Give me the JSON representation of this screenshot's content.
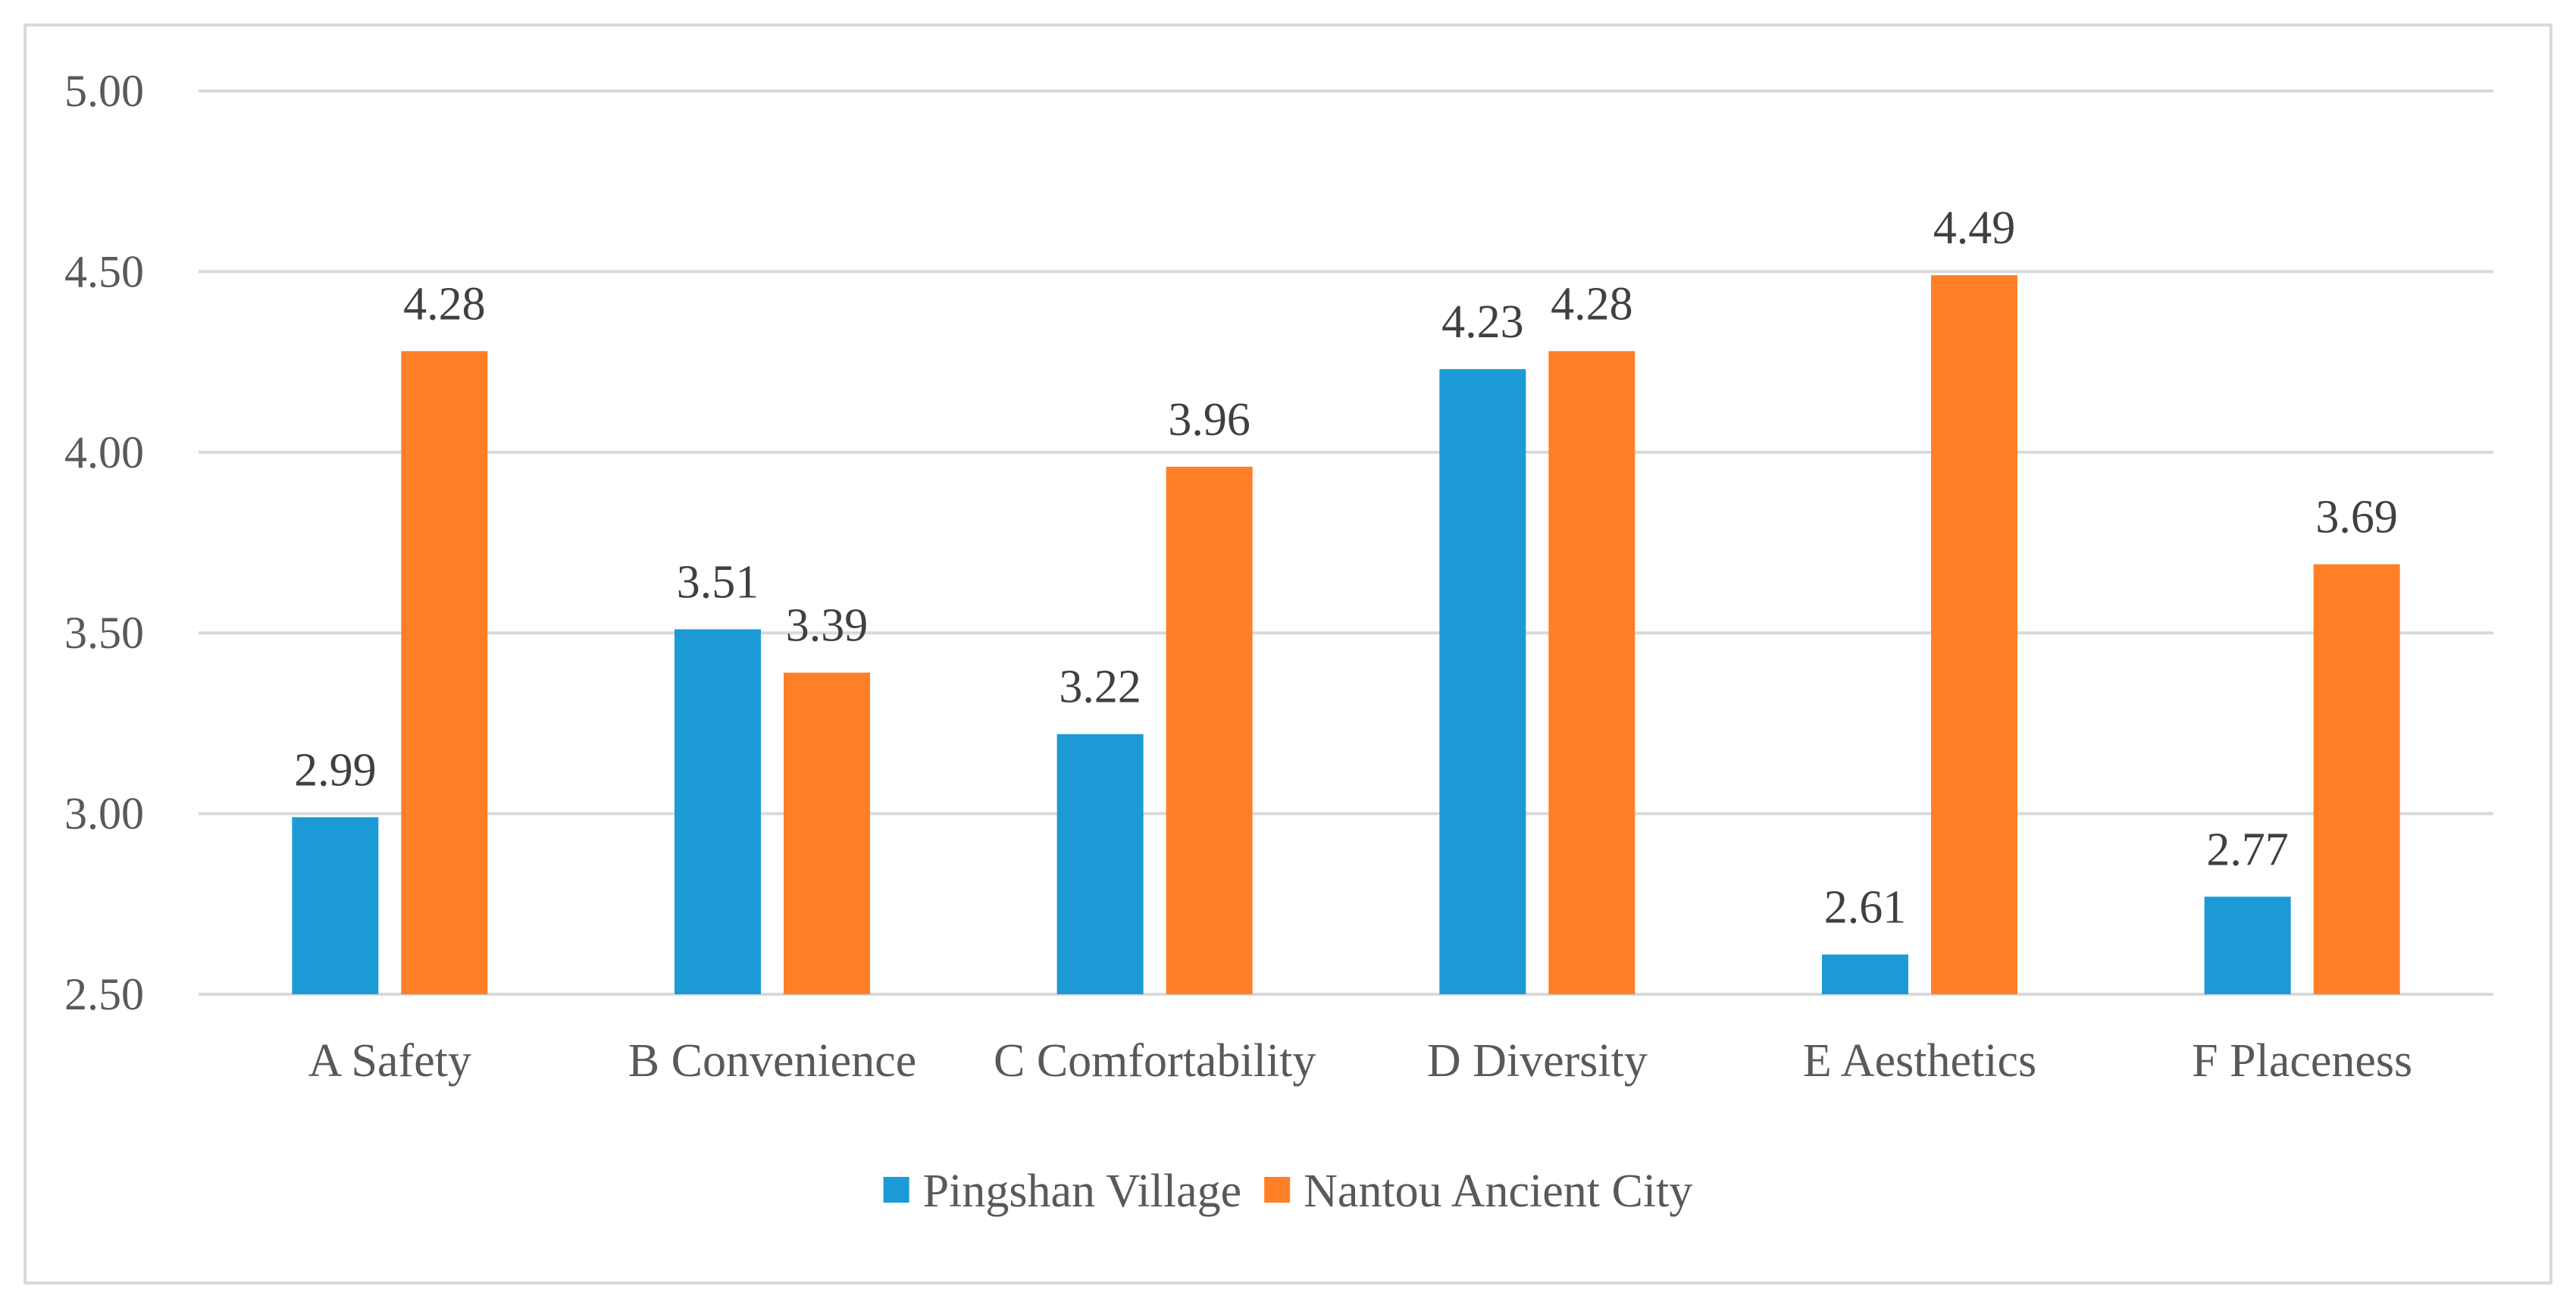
{
  "chart_data": {
    "type": "bar",
    "categories": [
      "A Safety",
      "B Convenience",
      "C Comfortability",
      "D Diversity",
      "E Aesthetics",
      "F Placeness"
    ],
    "series": [
      {
        "name": "Pingshan Village",
        "color": "#1c9ad6",
        "values": [
          2.99,
          3.51,
          3.22,
          4.23,
          2.61,
          2.77
        ],
        "labels": [
          "2.99",
          "3.51",
          "3.22",
          "4.23",
          "2.61",
          "2.77"
        ]
      },
      {
        "name": "Nantou Ancient City",
        "color": "#ff7f27",
        "values": [
          4.28,
          3.39,
          3.96,
          4.28,
          4.49,
          3.69
        ],
        "labels": [
          "4.28",
          "3.39",
          "3.96",
          "4.28",
          "4.49",
          "3.69"
        ]
      }
    ],
    "ylim": [
      2.5,
      5.0
    ],
    "yticks": [
      2.5,
      3.0,
      3.5,
      4.0,
      4.5,
      5.0
    ],
    "ytick_labels": [
      "2.50",
      "3.00",
      "3.50",
      "4.00",
      "4.50",
      "5.00"
    ],
    "grid": true,
    "legend_position": "bottom-center",
    "title": "",
    "xlabel": "",
    "ylabel": ""
  }
}
